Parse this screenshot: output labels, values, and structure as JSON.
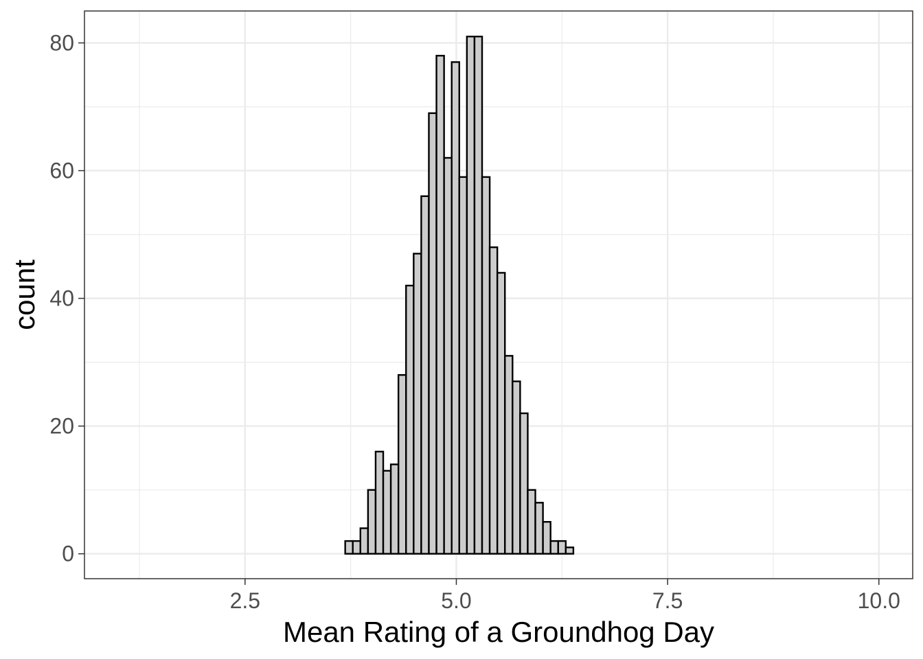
{
  "chart_data": {
    "type": "bar",
    "subtype": "histogram",
    "title": "",
    "xlabel": "Mean Rating of a Groundhog Day",
    "ylabel": "count",
    "xlim": [
      0.6,
      10.4
    ],
    "ylim": [
      -3.9,
      85
    ],
    "bin_width": 0.09,
    "x_ticks": [
      2.5,
      5.0,
      7.5,
      10.0
    ],
    "x_tick_labels": [
      "2.5",
      "5.0",
      "7.5",
      "10.0"
    ],
    "y_ticks": [
      0,
      20,
      40,
      60,
      80
    ],
    "y_tick_labels": [
      "0",
      "20",
      "40",
      "60",
      "80"
    ],
    "grid": true,
    "bar_fill": "#cccccc",
    "bar_stroke": "#000000",
    "bins": [
      {
        "x": 3.73,
        "count": 2
      },
      {
        "x": 3.82,
        "count": 2
      },
      {
        "x": 3.91,
        "count": 4
      },
      {
        "x": 4.0,
        "count": 10
      },
      {
        "x": 4.09,
        "count": 16
      },
      {
        "x": 4.18,
        "count": 13
      },
      {
        "x": 4.27,
        "count": 14
      },
      {
        "x": 4.36,
        "count": 28
      },
      {
        "x": 4.45,
        "count": 42
      },
      {
        "x": 4.54,
        "count": 47
      },
      {
        "x": 4.63,
        "count": 56
      },
      {
        "x": 4.72,
        "count": 69
      },
      {
        "x": 4.81,
        "count": 78
      },
      {
        "x": 4.9,
        "count": 62
      },
      {
        "x": 4.99,
        "count": 77
      },
      {
        "x": 5.08,
        "count": 59
      },
      {
        "x": 5.17,
        "count": 81
      },
      {
        "x": 5.26,
        "count": 81
      },
      {
        "x": 5.35,
        "count": 59
      },
      {
        "x": 5.44,
        "count": 48
      },
      {
        "x": 5.53,
        "count": 44
      },
      {
        "x": 5.62,
        "count": 31
      },
      {
        "x": 5.71,
        "count": 27
      },
      {
        "x": 5.8,
        "count": 22
      },
      {
        "x": 5.89,
        "count": 10
      },
      {
        "x": 5.98,
        "count": 8
      },
      {
        "x": 6.07,
        "count": 5
      },
      {
        "x": 6.16,
        "count": 2
      },
      {
        "x": 6.25,
        "count": 2
      },
      {
        "x": 6.34,
        "count": 1
      }
    ]
  }
}
